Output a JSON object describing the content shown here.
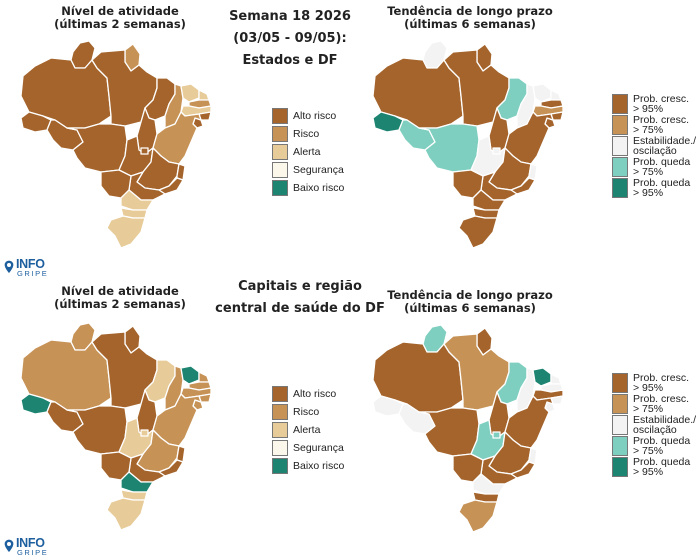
{
  "colors": {
    "alto": "#a4642c",
    "risco": "#c69256",
    "alerta": "#e7cb98",
    "seguranca": "#fbf7ea",
    "baixo": "#1c8471",
    "stable": "#f3f3f3",
    "queda75": "#7fcfc0",
    "queda95": "#1c8471",
    "cresc95": "#a4642c",
    "cresc75": "#c69256",
    "logo": "#1d5f9e"
  },
  "center_top": {
    "line1": "Semana 18 2026",
    "line2": "(03/05 - 09/05):",
    "line3": "Estados e DF"
  },
  "center_bottom": {
    "line1": "Capitais e região",
    "line2": "central de saúde do DF"
  },
  "panels": {
    "top_left": {
      "title1": "Nível de atividade",
      "title2": "(últimas 2 semanas)"
    },
    "top_right": {
      "title1": "Tendência de longo prazo",
      "title2": "(últimas 6 semanas)"
    },
    "bottom_left": {
      "title1": "Nível de atividade",
      "title2": "(últimas 2 semanas)"
    },
    "bottom_right": {
      "title1": "Tendência de longo prazo",
      "title2": "(últimas 6 semanas)"
    }
  },
  "legend_activity": [
    {
      "label": "Alto risco",
      "color": "#a4642c"
    },
    {
      "label": "Risco",
      "color": "#c69256"
    },
    {
      "label": "Alerta",
      "color": "#e7cb98"
    },
    {
      "label": "Segurança",
      "color": "#fbf7ea"
    },
    {
      "label": "Baixo risco",
      "color": "#1c8471"
    }
  ],
  "legend_trend": [
    {
      "line1": "Prob. cresc.",
      "line2": "> 95%",
      "color": "#a4642c"
    },
    {
      "line1": "Prob. cresc.",
      "line2": "> 75%",
      "color": "#c69256"
    },
    {
      "line1": "Estabilidade./",
      "line2": "oscilação",
      "color": "#f3f3f3"
    },
    {
      "line1": "Prob. queda",
      "line2": "> 75%",
      "color": "#7fcfc0"
    },
    {
      "line1": "Prob. queda",
      "line2": "> 95%",
      "color": "#1c8471"
    }
  ],
  "logo": {
    "name": "INFO",
    "sub": "GRIPE"
  },
  "maps": {
    "top_left": {
      "AC": "alto",
      "AM": "alto",
      "RR": "alto",
      "RO": "alto",
      "PA": "alto",
      "AP": "risco",
      "MT": "alto",
      "MA": "alto",
      "TO": "alto",
      "PI": "risco",
      "CE": "alerta",
      "RN": "alerta",
      "PB": "risco",
      "PE": "alerta",
      "AL": "alto",
      "SE": "alto",
      "BA": "risco",
      "GO": "alto",
      "DF": "alto",
      "MG": "alto",
      "ES": "alto",
      "RJ": "alto",
      "SP": "alto",
      "MS": "alto",
      "PR": "alerta",
      "SC": "alerta",
      "RS": "alerta"
    },
    "top_right": {
      "AC": "queda95",
      "AM": "cresc95",
      "RR": "stable",
      "RO": "queda75",
      "PA": "cresc95",
      "AP": "cresc95",
      "MT": "queda75",
      "MA": "queda75",
      "TO": "cresc95",
      "PI": "stable",
      "CE": "stable",
      "RN": "stable",
      "PB": "cresc95",
      "PE": "cresc75",
      "AL": "cresc95",
      "SE": "cresc95",
      "BA": "cresc95",
      "GO": "stable",
      "DF": "stable",
      "MG": "cresc95",
      "ES": "stable",
      "RJ": "cresc95",
      "SP": "cresc95",
      "MS": "cresc95",
      "PR": "cresc95",
      "SC": "cresc95",
      "RS": "cresc95"
    },
    "bottom_left": {
      "AC": "baixo",
      "AM": "risco",
      "RR": "risco",
      "RO": "alto",
      "PA": "alto",
      "AP": "alto",
      "MT": "alto",
      "MA": "alerta",
      "TO": "alto",
      "PI": "risco",
      "CE": "baixo",
      "RN": "risco",
      "PB": "risco",
      "PE": "risco",
      "AL": "risco",
      "SE": "risco",
      "BA": "risco",
      "GO": "alerta",
      "DF": "alerta",
      "MG": "risco",
      "ES": "alto",
      "RJ": "alto",
      "SP": "alto",
      "MS": "alto",
      "PR": "baixo",
      "SC": "alerta",
      "RS": "alerta"
    },
    "bottom_right": {
      "AC": "stable",
      "AM": "cresc95",
      "RR": "queda75",
      "RO": "stable",
      "PA": "cresc75",
      "AP": "cresc95",
      "MT": "cresc95",
      "MA": "queda75",
      "TO": "cresc95",
      "PI": "stable",
      "CE": "queda95",
      "RN": "stable",
      "PB": "stable",
      "PE": "cresc95",
      "AL": "stable",
      "SE": "stable",
      "BA": "cresc95",
      "GO": "queda75",
      "DF": "queda75",
      "MG": "cresc95",
      "ES": "stable",
      "RJ": "cresc95",
      "SP": "cresc95",
      "MS": "cresc95",
      "PR": "stable",
      "SC": "cresc95",
      "RS": "cresc75"
    }
  }
}
